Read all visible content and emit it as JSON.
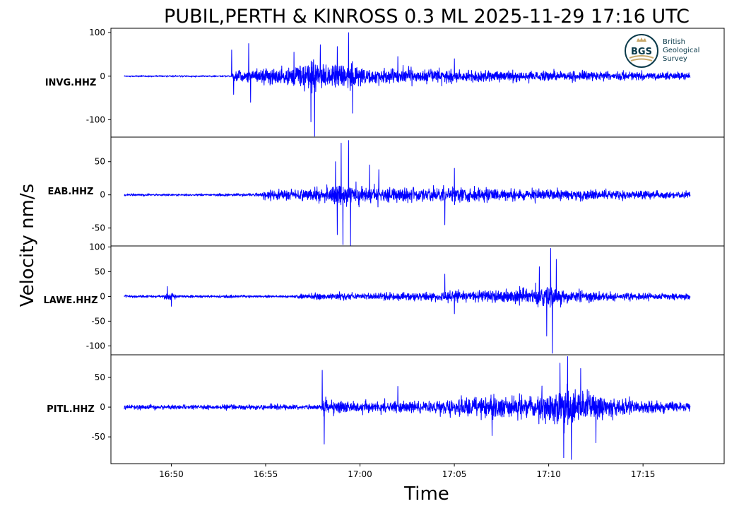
{
  "chart_data": {
    "type": "line",
    "title": "PUBIL,PERTH & KINROSS 0.3 ML   2025-11-29 17:16 UTC",
    "xlabel": "Time",
    "ylabel": "Velocity nm/s",
    "x_ticks": [
      "16:50",
      "16:55",
      "17:00",
      "17:05",
      "17:10",
      "17:15"
    ],
    "x_tick_minutes": [
      0,
      5,
      10,
      15,
      20,
      25
    ],
    "x_range_minutes": [
      -3.2,
      29.3
    ],
    "data_range_minutes": [
      -2.5,
      27.5
    ],
    "line_color": "#0000ff",
    "panels": [
      {
        "station": "INVG.HHZ",
        "ylim": [
          -140,
          110
        ],
        "yticks": [
          100,
          0,
          -100
        ],
        "envelope": [
          [
            -2.5,
            3
          ],
          [
            1.5,
            3
          ],
          [
            3.2,
            3
          ],
          [
            3.3,
            30
          ],
          [
            3.5,
            20
          ],
          [
            4.5,
            25
          ],
          [
            5.0,
            35
          ],
          [
            5.4,
            35
          ],
          [
            6.0,
            35
          ],
          [
            6.8,
            45
          ],
          [
            7.0,
            55
          ],
          [
            7.4,
            70
          ],
          [
            7.8,
            55
          ],
          [
            8.5,
            40
          ],
          [
            9.0,
            45
          ],
          [
            9.5,
            55
          ],
          [
            10.5,
            35
          ],
          [
            13.0,
            28
          ],
          [
            18.0,
            22
          ],
          [
            23.0,
            18
          ],
          [
            27.5,
            15
          ]
        ],
        "spikes": [
          [
            3.2,
            60
          ],
          [
            3.3,
            -42
          ],
          [
            4.1,
            75
          ],
          [
            4.2,
            -60
          ],
          [
            6.5,
            55
          ],
          [
            7.4,
            -105
          ],
          [
            7.6,
            -138
          ],
          [
            7.9,
            72
          ],
          [
            8.8,
            68
          ],
          [
            9.4,
            100
          ],
          [
            9.6,
            -85
          ],
          [
            12.0,
            45
          ],
          [
            15.0,
            40
          ]
        ]
      },
      {
        "station": "EAB.HHZ",
        "ylim": [
          -77,
          87
        ],
        "yticks": [
          50,
          0,
          -50
        ],
        "envelope": [
          [
            -2.5,
            3
          ],
          [
            2.0,
            3
          ],
          [
            4.5,
            4
          ],
          [
            5.0,
            10
          ],
          [
            6.0,
            14
          ],
          [
            7.5,
            16
          ],
          [
            8.5,
            22
          ],
          [
            9.0,
            35
          ],
          [
            9.5,
            30
          ],
          [
            10.0,
            25
          ],
          [
            12.0,
            18
          ],
          [
            15.0,
            20
          ],
          [
            18.0,
            15
          ],
          [
            22.0,
            13
          ],
          [
            27.5,
            9
          ]
        ],
        "spikes": [
          [
            8.7,
            50
          ],
          [
            8.8,
            -60
          ],
          [
            9.0,
            78
          ],
          [
            9.1,
            -75
          ],
          [
            9.4,
            82
          ],
          [
            9.5,
            -76
          ],
          [
            10.5,
            45
          ],
          [
            11.0,
            38
          ],
          [
            15.0,
            40
          ],
          [
            14.5,
            -45
          ]
        ]
      },
      {
        "station": "LAWE.HHZ",
        "ylim": [
          -118,
          102
        ],
        "yticks": [
          100,
          50,
          0,
          -50,
          -100
        ],
        "envelope": [
          [
            -2.5,
            4
          ],
          [
            -0.5,
            5
          ],
          [
            -0.2,
            14
          ],
          [
            0.0,
            12
          ],
          [
            0.4,
            5
          ],
          [
            6.5,
            4
          ],
          [
            6.8,
            10
          ],
          [
            10.0,
            12
          ],
          [
            13.0,
            15
          ],
          [
            15.0,
            20
          ],
          [
            17.0,
            22
          ],
          [
            19.0,
            30
          ],
          [
            19.8,
            45
          ],
          [
            20.3,
            30
          ],
          [
            21.5,
            20
          ],
          [
            24.0,
            13
          ],
          [
            27.5,
            11
          ]
        ],
        "spikes": [
          [
            -0.2,
            20
          ],
          [
            0.0,
            -20
          ],
          [
            14.5,
            45
          ],
          [
            15.0,
            -35
          ],
          [
            19.5,
            60
          ],
          [
            19.9,
            -80
          ],
          [
            20.1,
            97
          ],
          [
            20.2,
            -115
          ],
          [
            20.4,
            75
          ]
        ]
      },
      {
        "station": "PITL.HHZ",
        "ylim": [
          -95,
          88
        ],
        "yticks": [
          50,
          0,
          -50
        ],
        "envelope": [
          [
            -2.5,
            7
          ],
          [
            8.0,
            7
          ],
          [
            8.1,
            25
          ],
          [
            8.5,
            20
          ],
          [
            10.0,
            18
          ],
          [
            13.0,
            16
          ],
          [
            15.0,
            25
          ],
          [
            16.5,
            30
          ],
          [
            18.0,
            35
          ],
          [
            19.0,
            33
          ],
          [
            20.0,
            45
          ],
          [
            21.0,
            60
          ],
          [
            22.0,
            40
          ],
          [
            23.5,
            28
          ],
          [
            25.0,
            18
          ],
          [
            27.5,
            15
          ]
        ],
        "spikes": [
          [
            8.0,
            62
          ],
          [
            8.1,
            -62
          ],
          [
            12.0,
            35
          ],
          [
            17.0,
            -48
          ],
          [
            20.6,
            74
          ],
          [
            20.8,
            -85
          ],
          [
            21.0,
            85
          ],
          [
            21.2,
            -88
          ],
          [
            21.7,
            65
          ],
          [
            22.5,
            -60
          ]
        ]
      }
    ]
  },
  "logo": {
    "abbr": "BGS",
    "lines": [
      "British",
      "Geological",
      "Survey"
    ]
  }
}
